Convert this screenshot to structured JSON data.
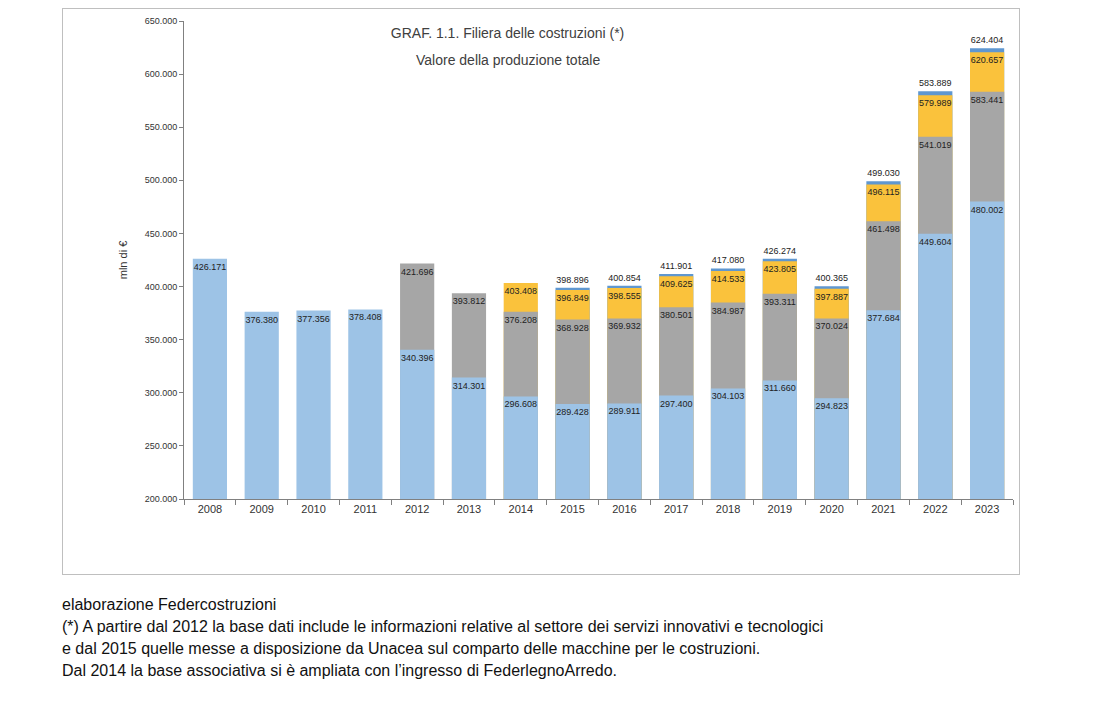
{
  "chart_data": {
    "type": "bar",
    "title": "GRAF. 1.1. Filiera delle costruzioni (*)",
    "subtitle": "Valore della produzione totale",
    "y_label": "mln di €",
    "annotations": [
      "elaborazione Federcostruzioni",
      "(*) A partire dal 2012 la base dati include le informazioni relative al settore dei servizi innovativi e tecnologici",
      "e dal 2015 quelle messe a disposizione da Unacea sul comparto delle macchine per le costruzioni.",
      "Dal 2014 la base associativa si è ampliata con l’ingresso di FederlegnoArredo."
    ],
    "categories": [
      "2008",
      "2009",
      "2010",
      "2011",
      "2012",
      "2013",
      "2014",
      "2015",
      "2016",
      "2017",
      "2018",
      "2019",
      "2020",
      "2021",
      "2022",
      "2023"
    ],
    "stacked": false,
    "data_labels": true,
    "grid": false,
    "ylim": [
      200000,
      650000
    ],
    "yticks": [
      {
        "value": 200000,
        "label": "200.000"
      },
      {
        "value": 250000,
        "label": "250.000"
      },
      {
        "value": 300000,
        "label": "300.000"
      },
      {
        "value": 350000,
        "label": "350.000"
      },
      {
        "value": 400000,
        "label": "400.000"
      },
      {
        "value": 450000,
        "label": "450.000"
      },
      {
        "value": 500000,
        "label": "500.000"
      },
      {
        "value": 550000,
        "label": "550.000"
      },
      {
        "value": 600000,
        "label": "600.000"
      },
      {
        "value": 650000,
        "label": "650.000"
      }
    ],
    "series": [
      {
        "color": "#9dc3e6",
        "values": [
          426171,
          376380,
          377356,
          378408,
          340396,
          314301,
          296608,
          289428,
          289911,
          297400,
          304103,
          311660,
          294823,
          377684,
          449604,
          480002
        ],
        "value_labels": [
          "426.171",
          "376.380",
          "377.356",
          "378.408",
          "340.396",
          "314.301",
          "296.608",
          "289.428",
          "289.911",
          "297.400",
          "304.103",
          "311.660",
          "294.823",
          "377.684",
          "449.604",
          "480.002"
        ]
      },
      {
        "color": "#a6a6a6",
        "values": [
          null,
          null,
          null,
          null,
          421696,
          393812,
          376208,
          368928,
          369932,
          380501,
          384987,
          393311,
          370024,
          461498,
          541019,
          583441
        ],
        "value_labels": [
          null,
          null,
          null,
          null,
          "421.696",
          "393.812",
          "376.208",
          "368.928",
          "369.932",
          "380.501",
          "384.987",
          "393.311",
          "370.024",
          "461.498",
          "541.019",
          "583.441"
        ]
      },
      {
        "color": "#fac23c",
        "values": [
          null,
          null,
          null,
          null,
          null,
          null,
          403408,
          396849,
          398555,
          409625,
          414533,
          423805,
          397887,
          496115,
          579989,
          620657
        ],
        "value_labels": [
          null,
          null,
          null,
          null,
          null,
          null,
          "403.408",
          "396.849",
          "398.555",
          "409.625",
          "414.533",
          "423.805",
          "397.887",
          "496.115",
          "579.989",
          "620.657"
        ]
      },
      {
        "color": "#5f97d0",
        "values": [
          null,
          null,
          null,
          null,
          null,
          null,
          null,
          398896,
          400854,
          411901,
          417080,
          426274,
          400365,
          499030,
          583889,
          624404
        ],
        "value_labels": [
          null,
          null,
          null,
          null,
          null,
          null,
          null,
          "398.896",
          "400.854",
          "411.901",
          "417.080",
          "426.274",
          "400.365",
          "499.030",
          "583.889",
          "624.404"
        ]
      }
    ]
  }
}
